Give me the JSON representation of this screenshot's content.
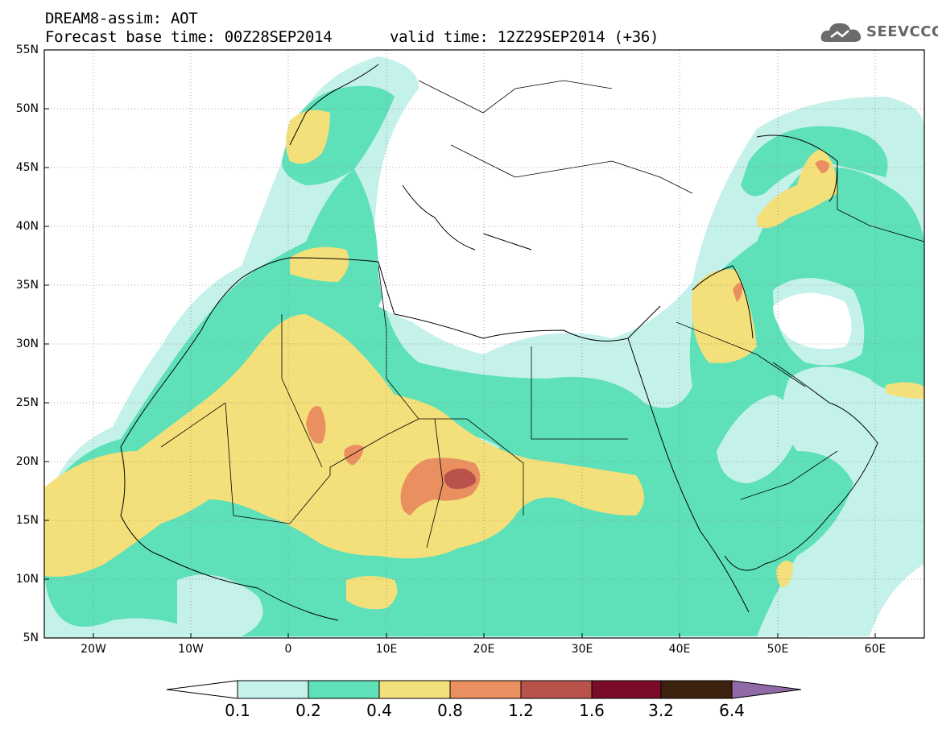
{
  "header": {
    "title": "DREAM8-assim: AOT",
    "base_time": "Forecast base time: 00Z28SEP2014",
    "valid_time": "valid time: 12Z29SEP2014 (+36)"
  },
  "logo": {
    "text": "SEEVCCC",
    "icon": "cloud-logo-icon"
  },
  "map": {
    "lat_labels": [
      "55N",
      "50N",
      "45N",
      "40N",
      "35N",
      "30N",
      "25N",
      "20N",
      "15N",
      "10N",
      "5N"
    ],
    "lon_labels": [
      "20W",
      "10W",
      "0",
      "10E",
      "20E",
      "30E",
      "40E",
      "50E",
      "60E"
    ],
    "lat_range": [
      5,
      55
    ],
    "lon_range": [
      -25,
      65
    ],
    "grid": true
  },
  "colorbar": {
    "colors": [
      "#ffffff",
      "#c4f1ea",
      "#5ee0b8",
      "#f4e07a",
      "#ea9060",
      "#b9524a",
      "#7a0c2a",
      "#3e2210",
      "#8f6aa6"
    ],
    "labels": [
      "0.1",
      "0.2",
      "0.4",
      "0.8",
      "1.2",
      "1.6",
      "3.2",
      "6.4"
    ]
  },
  "legend_colors": {
    "aot_0_1": "#c4f1ea",
    "aot_0_2": "#5ee0b8",
    "aot_0_4": "#f4e07a",
    "aot_0_8": "#ea9060",
    "aot_1_2": "#b9524a",
    "aot_1_6": "#7a0c2a"
  }
}
